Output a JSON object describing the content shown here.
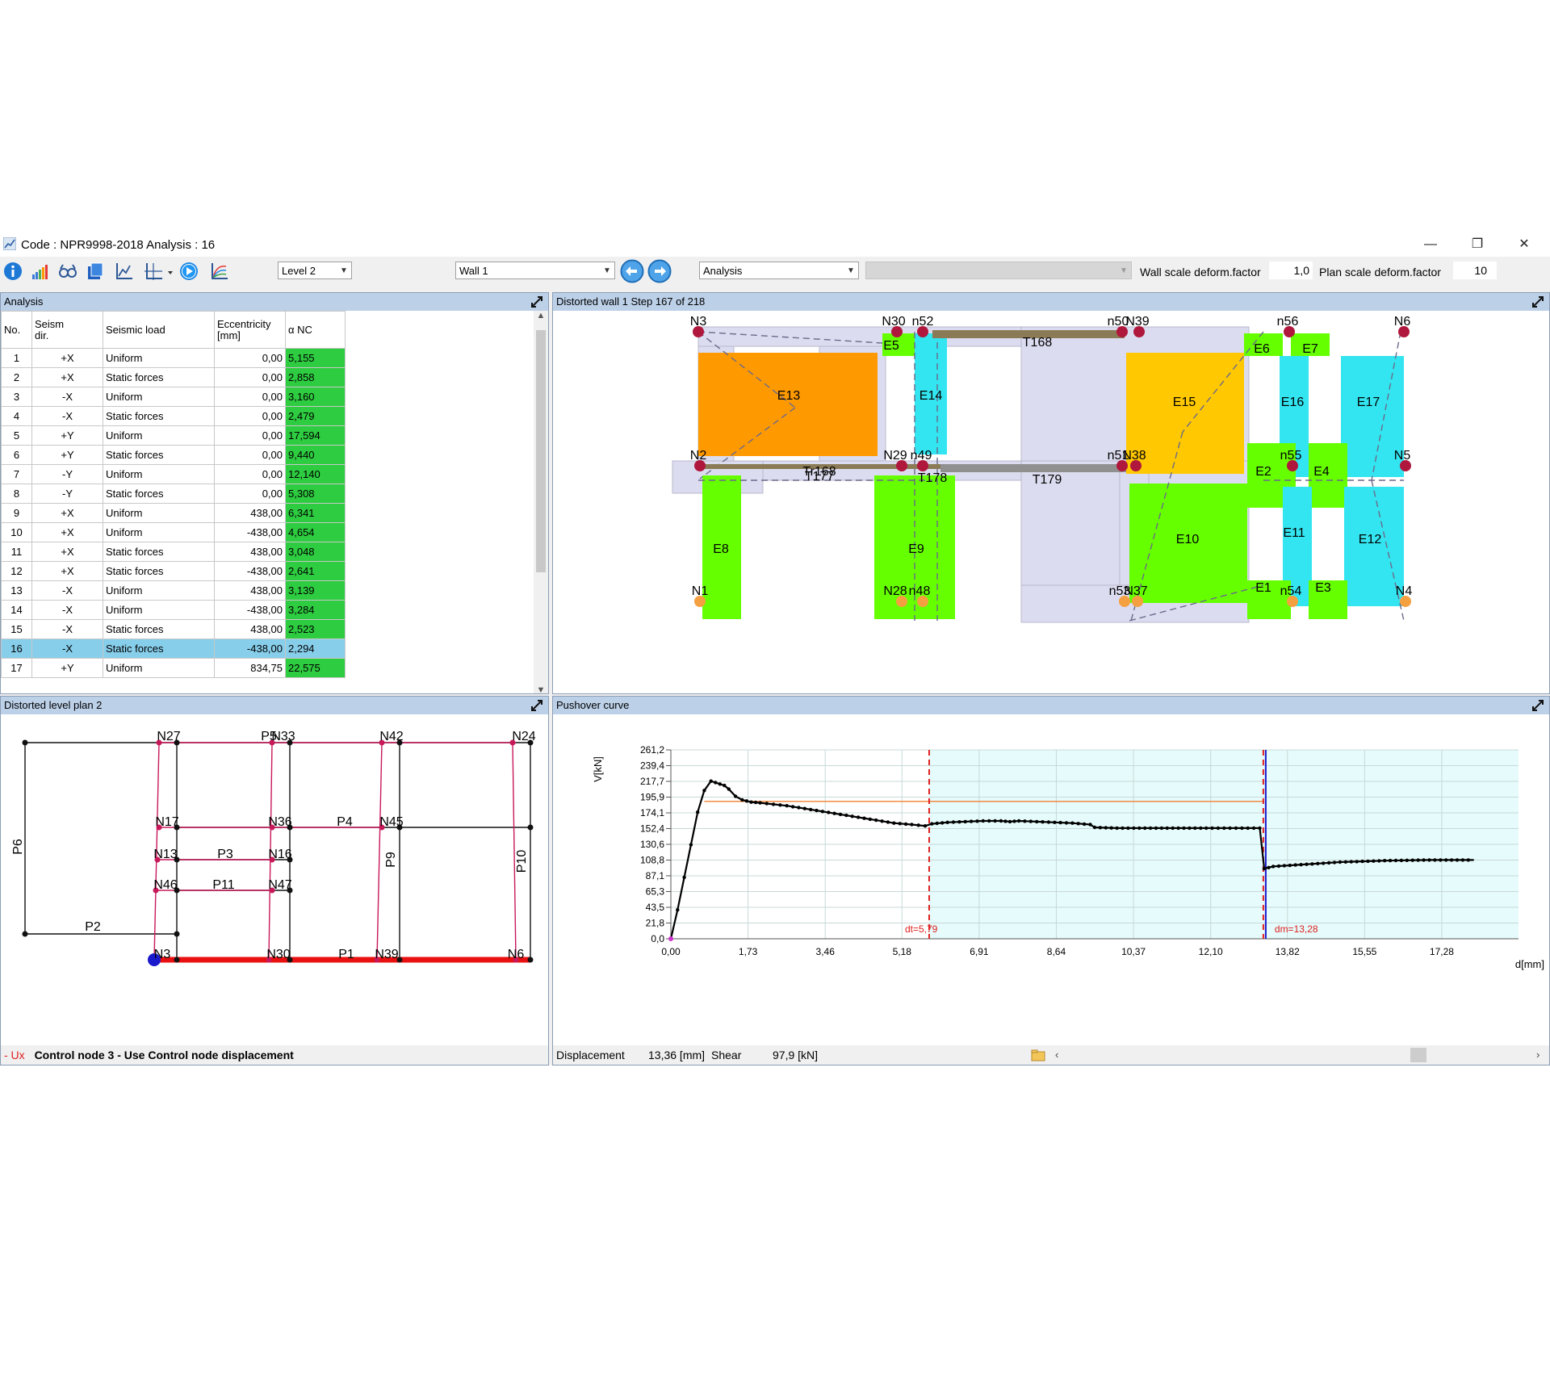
{
  "window": {
    "title": "Code : NPR9998-2018  Analysis : 16",
    "minimize": "—",
    "restore": "❐",
    "close": "✕"
  },
  "toolbar": {
    "level_combo": "Level 2",
    "wall_combo": "Wall 1",
    "mode_combo": "Analysis",
    "wall_scale_label": "Wall scale deform.factor",
    "wall_scale_value": "1,0",
    "plan_scale_label": "Plan scale deform.factor",
    "plan_scale_value": "10",
    "icons": [
      "info-icon",
      "bar-chart-icon",
      "glasses-icon",
      "export-icon",
      "chart-line-icon",
      "axes-dropdown-icon",
      "play-icon",
      "curves-icon"
    ]
  },
  "analysis_panel": {
    "title": "Analysis",
    "headers": [
      "No.",
      "Seism\ndir.",
      "Seismic load",
      "Eccentricity\n[mm]",
      "α NC"
    ],
    "rows": [
      [
        "1",
        "+X",
        "Uniform",
        "0,00",
        "5,155"
      ],
      [
        "2",
        "+X",
        "Static forces",
        "0,00",
        "2,858"
      ],
      [
        "3",
        "-X",
        "Uniform",
        "0,00",
        "3,160"
      ],
      [
        "4",
        "-X",
        "Static forces",
        "0,00",
        "2,479"
      ],
      [
        "5",
        "+Y",
        "Uniform",
        "0,00",
        "17,594"
      ],
      [
        "6",
        "+Y",
        "Static forces",
        "0,00",
        "9,440"
      ],
      [
        "7",
        "-Y",
        "Uniform",
        "0,00",
        "12,140"
      ],
      [
        "8",
        "-Y",
        "Static forces",
        "0,00",
        "5,308"
      ],
      [
        "9",
        "+X",
        "Uniform",
        "438,00",
        "6,341"
      ],
      [
        "10",
        "+X",
        "Uniform",
        "-438,00",
        "4,654"
      ],
      [
        "11",
        "+X",
        "Static forces",
        "438,00",
        "3,048"
      ],
      [
        "12",
        "+X",
        "Static forces",
        "-438,00",
        "2,641"
      ],
      [
        "13",
        "-X",
        "Uniform",
        "438,00",
        "3,139"
      ],
      [
        "14",
        "-X",
        "Uniform",
        "-438,00",
        "3,284"
      ],
      [
        "15",
        "-X",
        "Static forces",
        "438,00",
        "2,523"
      ],
      [
        "16",
        "-X",
        "Static forces",
        "-438,00",
        "2,294"
      ],
      [
        "17",
        "+Y",
        "Uniform",
        "834,75",
        "22,575"
      ]
    ],
    "selected_row": 16
  },
  "wall_panel": {
    "title": "Distorted wall 1 Step 167 of 218",
    "node_labels": [
      "N3",
      "N30",
      "n52",
      "n50",
      "N39",
      "n56",
      "N6",
      "N2",
      "N29",
      "n49",
      "n51",
      "N38",
      "n55",
      "N5",
      "N1",
      "N28",
      "n48",
      "n53",
      "N37",
      "n54",
      "N4"
    ],
    "element_labels": [
      "E5",
      "E6",
      "E7",
      "E13",
      "E14",
      "E15",
      "E16",
      "E17",
      "E2",
      "E4",
      "E8",
      "E9",
      "E10",
      "E11",
      "E12",
      "E1",
      "E3"
    ],
    "beam_labels": [
      "T168",
      "T177",
      "T179",
      "T178",
      "Tr168"
    ],
    "colors": {
      "orange": "#ff9900",
      "gold": "#ffc800",
      "green": "#66ff00",
      "cyan": "#33e5f0",
      "node": "#b0173c",
      "base": "#f5a040",
      "beam": "#8a7a55",
      "beam2": "#909090",
      "panel": "#dcdcf0"
    }
  },
  "plan_panel": {
    "title": "Distorted level plan 2",
    "labels": [
      "N27",
      "P5",
      "N33",
      "N42",
      "N24",
      "N17",
      "N36",
      "P4",
      "N45",
      "N13",
      "P3",
      "N16",
      "N46",
      "P11",
      "N47",
      "N3",
      "N30",
      "P1",
      "N39",
      "N6",
      "P2",
      "P6",
      "P9",
      "P10"
    ],
    "status_prefix": "- Ux",
    "status_text": "Control node 3 - Use Control node displacement"
  },
  "pushover_panel": {
    "title": "Pushover curve",
    "displacement_label": "Displacement",
    "displacement_value": "13,36 [mm]",
    "shear_label": "Shear",
    "shear_value": "97,9 [kN]"
  },
  "chart_data": {
    "type": "line",
    "title": "",
    "xlabel": "d[mm]",
    "ylabel": "V[kN]",
    "xlim": [
      0,
      19.0
    ],
    "ylim": [
      0,
      261.2
    ],
    "x_ticks": [
      "0,00",
      "1,73",
      "3,46",
      "5,18",
      "6,91",
      "8,64",
      "10,37",
      "12,10",
      "13,82",
      "15,55",
      "17,28"
    ],
    "x_tick_values": [
      0,
      1.73,
      3.46,
      5.18,
      6.91,
      8.64,
      10.37,
      12.1,
      13.82,
      15.55,
      17.28
    ],
    "y_ticks": [
      "0,0",
      "21,8",
      "43,5",
      "65,3",
      "87,1",
      "108,8",
      "130,6",
      "152,4",
      "174,1",
      "195,9",
      "217,7",
      "239,4",
      "261,2"
    ],
    "y_tick_values": [
      0,
      21.8,
      43.5,
      65.3,
      87.1,
      108.8,
      130.6,
      152.4,
      174.1,
      195.9,
      217.7,
      239.4,
      261.2
    ],
    "grid": true,
    "series": [
      {
        "values_x": [
          0,
          0.15,
          0.3,
          0.45,
          0.6,
          0.75,
          0.9,
          1.0,
          1.1,
          1.2,
          1.3,
          1.45,
          1.6,
          1.8,
          2.0,
          2.3,
          2.6,
          3.0,
          3.4,
          3.8,
          4.2,
          4.6,
          5.0,
          5.4,
          5.7,
          5.85,
          6.2,
          6.6,
          7.0,
          7.4,
          7.6,
          7.8,
          8.2,
          8.6,
          9.0,
          9.4,
          9.5,
          10.0,
          11.0,
          12.0,
          13.2,
          13.3,
          13.5,
          14.0,
          14.5,
          15.0,
          15.5,
          16.0,
          16.5,
          17.0,
          17.5,
          18.0
        ],
        "values_y": [
          0,
          40,
          85,
          130,
          175,
          205,
          218,
          216,
          214,
          212,
          207,
          197,
          192,
          189,
          188,
          186,
          184,
          180,
          176,
          172,
          168,
          164,
          160,
          158,
          156,
          159,
          161,
          162,
          163,
          163,
          162,
          163,
          162,
          161,
          160,
          158,
          154,
          153,
          153,
          153,
          153,
          97,
          100,
          102,
          104,
          106,
          107,
          108,
          108.5,
          109,
          109,
          109
        ]
      }
    ],
    "reference_lines": [
      {
        "label": "dt=5,79",
        "x": 5.79
      },
      {
        "label": "dm=13,28",
        "x": 13.28
      }
    ],
    "bilinear": {
      "x_start": 0.75,
      "x_end": 13.28,
      "y": 190
    }
  }
}
